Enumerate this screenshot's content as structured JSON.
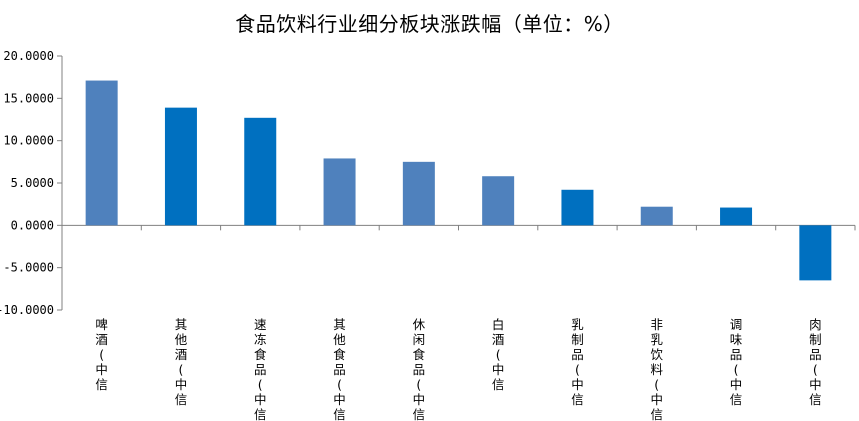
{
  "chart_data": {
    "type": "bar",
    "title": "食品饮料行业细分板块涨跌幅（单位：%）",
    "categories": [
      "啤酒(中信",
      "其他酒(中信",
      "速冻食品(中信",
      "其他食品(中信",
      "休闲食品(中信",
      "白酒(中信",
      "乳制品(中信",
      "非乳饮料(中信",
      "调味品(中信",
      "肉制品(中信"
    ],
    "values": [
      17.1,
      13.9,
      12.7,
      7.9,
      7.5,
      5.8,
      4.2,
      2.2,
      2.1,
      -6.5
    ],
    "bar_colors": [
      "#4f81bd",
      "#0070c0",
      "#0070c0",
      "#4f81bd",
      "#4f81bd",
      "#4f81bd",
      "#0070c0",
      "#4f81bd",
      "#0070c0",
      "#0070c0"
    ],
    "ylim": [
      -10,
      20
    ],
    "yticks": [
      "20.0000",
      "15.0000",
      "10.0000",
      "5.0000",
      "0.0000",
      "-5.0000",
      "-10.0000"
    ],
    "xlabel": "",
    "ylabel": "",
    "grid": false,
    "legend": "none"
  }
}
